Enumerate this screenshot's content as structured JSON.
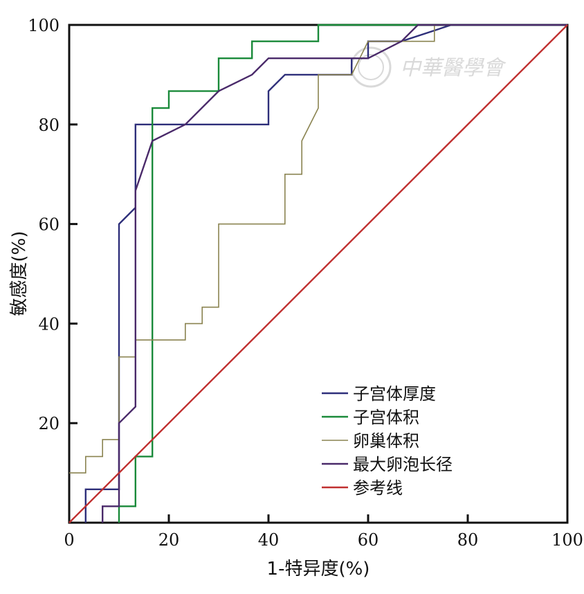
{
  "chart_data": {
    "type": "line",
    "xlabel": "1-特异度(%)",
    "ylabel": "敏感度(%)",
    "xlim": [
      0,
      100
    ],
    "ylim": [
      0,
      100
    ],
    "x_ticks": [
      "0",
      "20",
      "40",
      "60",
      "80",
      "100"
    ],
    "y_ticks": [
      "20",
      "40",
      "60",
      "80",
      "100"
    ],
    "grid": false,
    "legend_position": "bottom-right",
    "watermark": "中華醫學會",
    "series": [
      {
        "name": "子宫体厚度",
        "color": "#2e2f7a",
        "points": [
          [
            3.3,
            0
          ],
          [
            3.3,
            6.7
          ],
          [
            10,
            6.7
          ],
          [
            10,
            60
          ],
          [
            13.3,
            63.3
          ],
          [
            13.3,
            80
          ],
          [
            40,
            80
          ],
          [
            40,
            86.7
          ],
          [
            43.3,
            90
          ],
          [
            56.7,
            90
          ],
          [
            56.7,
            93.3
          ],
          [
            60,
            93.3
          ],
          [
            60,
            96.7
          ],
          [
            66.7,
            96.7
          ],
          [
            76.7,
            100
          ],
          [
            100,
            100
          ]
        ]
      },
      {
        "name": "子宫体积",
        "color": "#1a8a3a",
        "points": [
          [
            10,
            0
          ],
          [
            10,
            3.3
          ],
          [
            13.3,
            3.3
          ],
          [
            13.3,
            13.3
          ],
          [
            16.7,
            13.3
          ],
          [
            16.7,
            83.3
          ],
          [
            20,
            83.3
          ],
          [
            20,
            86.7
          ],
          [
            30,
            86.7
          ],
          [
            30,
            93.3
          ],
          [
            36.7,
            93.3
          ],
          [
            36.7,
            96.7
          ],
          [
            50,
            96.7
          ],
          [
            50,
            100
          ],
          [
            100,
            100
          ]
        ]
      },
      {
        "name": "卵巢体积",
        "color": "#8a8350",
        "points": [
          [
            0,
            10
          ],
          [
            3.3,
            10
          ],
          [
            3.3,
            13.3
          ],
          [
            6.7,
            13.3
          ],
          [
            6.7,
            16.7
          ],
          [
            10,
            16.7
          ],
          [
            10,
            33.3
          ],
          [
            13.3,
            33.3
          ],
          [
            13.3,
            36.7
          ],
          [
            23.3,
            36.7
          ],
          [
            23.3,
            40
          ],
          [
            26.7,
            40
          ],
          [
            26.7,
            43.3
          ],
          [
            30,
            43.3
          ],
          [
            30,
            60
          ],
          [
            43.3,
            60
          ],
          [
            43.3,
            70
          ],
          [
            46.7,
            70
          ],
          [
            46.7,
            76.7
          ],
          [
            50,
            83.3
          ],
          [
            50,
            90
          ],
          [
            56.7,
            90
          ],
          [
            60,
            96.7
          ],
          [
            73.3,
            96.7
          ],
          [
            73.3,
            100
          ],
          [
            100,
            100
          ]
        ]
      },
      {
        "name": "最大卵泡长径",
        "color": "#4a2a6a",
        "points": [
          [
            6.7,
            0
          ],
          [
            6.7,
            3.3
          ],
          [
            10,
            3.3
          ],
          [
            10,
            20
          ],
          [
            13.3,
            23.3
          ],
          [
            13.3,
            66.7
          ],
          [
            16.7,
            76.7
          ],
          [
            23.3,
            80
          ],
          [
            30,
            86.7
          ],
          [
            36.7,
            90
          ],
          [
            40,
            93.3
          ],
          [
            56.7,
            93.3
          ],
          [
            60,
            93.3
          ],
          [
            66.7,
            96.7
          ],
          [
            70,
            100
          ],
          [
            100,
            100
          ]
        ]
      },
      {
        "name": "参考线",
        "color": "#c03030",
        "points": [
          [
            0,
            0
          ],
          [
            100,
            100
          ]
        ]
      }
    ]
  }
}
